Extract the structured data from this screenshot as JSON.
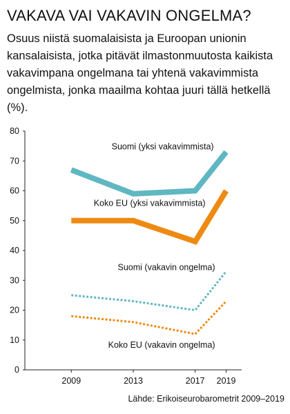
{
  "header": {
    "title": "VAKAVA VAI VAKAVIN ONGELMA?",
    "subtitle": "Osuus niistä suomalaisista ja Euroopan unionin kansalaisista, jotka pitävät ilmastonmuutosta kaikista vakavimpana ongelmana tai yhtenä vakavimmista ongelmista, jonka maailma kohtaa juuri tällä hetkellä (%)."
  },
  "source": "Lähde: Erikoiseurobarometrit 2009–2019",
  "chart_data": {
    "type": "line",
    "x": [
      2009,
      2013,
      2017,
      2019
    ],
    "xlim": [
      2006,
      2020
    ],
    "ylim": [
      0,
      80
    ],
    "yticks": [
      0,
      10,
      20,
      30,
      40,
      50,
      60,
      70,
      80
    ],
    "grid": false,
    "series": [
      {
        "name": "Suomi (yksi vakavimmista)",
        "values": [
          67,
          59,
          60,
          73
        ],
        "color": "#5fb7c2",
        "style": "solid",
        "width": "thick"
      },
      {
        "name": "Koko EU (yksi vakavimmista)",
        "values": [
          50,
          50,
          43,
          60
        ],
        "color": "#ee8a12",
        "style": "solid",
        "width": "thick"
      },
      {
        "name": "Suomi (vakavin ongelma)",
        "values": [
          25,
          23,
          20,
          33
        ],
        "color": "#5fb7c2",
        "style": "dashed",
        "width": "thin"
      },
      {
        "name": "Koko EU (vakavin ongelma)",
        "values": [
          18,
          16,
          12,
          23
        ],
        "color": "#ee8a12",
        "style": "dashed",
        "width": "thin"
      }
    ]
  }
}
